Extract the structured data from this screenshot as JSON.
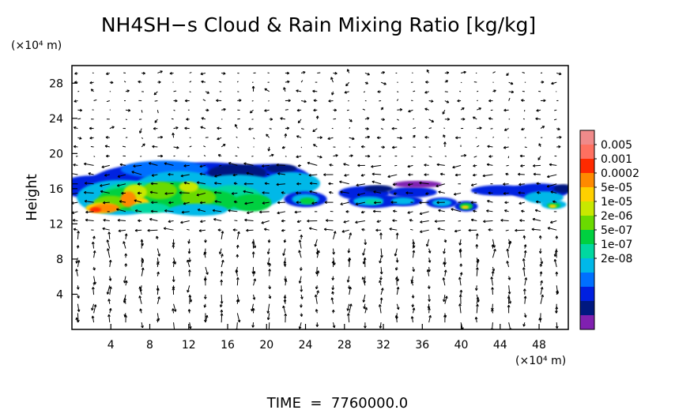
{
  "chart_data": {
    "type": "heatmap",
    "title": "NH4SH−s Cloud & Rain Mixing Ratio [kg/kg]",
    "ylabel": "Height",
    "y_unit": "(×10⁴ m)",
    "x_unit": "(×10⁴ m)",
    "footer": "TIME  =  7760000.0",
    "xlim": [
      0,
      51
    ],
    "ylim": [
      0,
      30
    ],
    "xticks": [
      "4",
      "8",
      "12",
      "16",
      "20",
      "24",
      "28",
      "32",
      "36",
      "40",
      "44",
      "48"
    ],
    "yticks": [
      "4",
      "8",
      "12",
      "16",
      "20",
      "24",
      "28"
    ],
    "xtick_values": [
      4,
      8,
      12,
      16,
      20,
      24,
      28,
      32,
      36,
      40,
      44,
      48
    ],
    "ytick_values": [
      4,
      8,
      12,
      16,
      20,
      24,
      28
    ],
    "colorbar": {
      "labels": [
        "0.005",
        "0.001",
        "0.0002",
        "5e-05",
        "1e-05",
        "2e-06",
        "5e-07",
        "1e-07",
        "2e-08"
      ],
      "colors": [
        "#f08a8a",
        "#ff7060",
        "#ff2a00",
        "#ff8a00",
        "#ffd000",
        "#c8e800",
        "#6ada00",
        "#00d040",
        "#00d8a0",
        "#00b8e8",
        "#0070ff",
        "#0020e0",
        "#001880",
        "#8020b0"
      ]
    },
    "cloud_regions": [
      {
        "x": [
          0,
          26
        ],
        "y": [
          12.5,
          19
        ],
        "max_level": "0.001"
      },
      {
        "x": [
          27,
          41
        ],
        "y": [
          13,
          17
        ],
        "max_level": "5e-05"
      },
      {
        "x": [
          41,
          51
        ],
        "y": [
          13.5,
          16.5
        ],
        "max_level": "1e-05"
      }
    ],
    "wind_vectors": true
  }
}
